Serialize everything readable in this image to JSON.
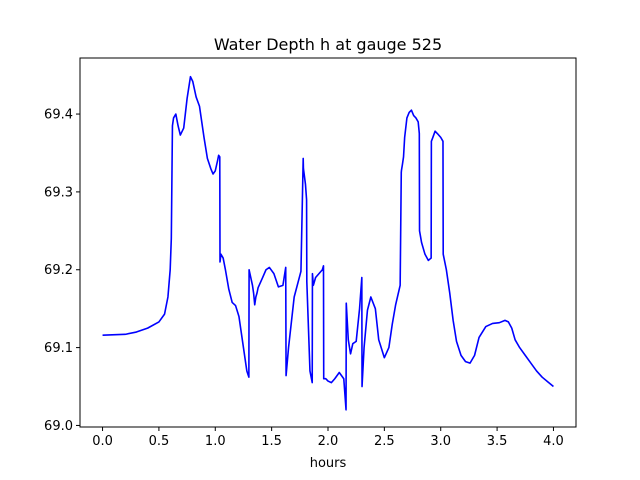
{
  "chart_data": {
    "type": "line",
    "title": "Water Depth h at gauge 525",
    "xlabel": "hours",
    "ylabel": "",
    "xlim": [
      -0.2,
      4.2
    ],
    "ylim": [
      68.998,
      69.472
    ],
    "xticks": [
      0.0,
      0.5,
      1.0,
      1.5,
      2.0,
      2.5,
      3.0,
      3.5,
      4.0
    ],
    "xtick_labels": [
      "0.0",
      "0.5",
      "1.0",
      "1.5",
      "2.0",
      "2.5",
      "3.0",
      "3.5",
      "4.0"
    ],
    "yticks": [
      69.0,
      69.1,
      69.2,
      69.3,
      69.4
    ],
    "ytick_labels": [
      "69.0",
      "69.1",
      "69.2",
      "69.3",
      "69.4"
    ],
    "grid": false,
    "legend": false,
    "series": [
      {
        "color": "#0000ff",
        "x": [
          0.0,
          0.2,
          0.3,
          0.4,
          0.5,
          0.55,
          0.58,
          0.6,
          0.61,
          0.62,
          0.63,
          0.65,
          0.67,
          0.69,
          0.72,
          0.75,
          0.78,
          0.8,
          0.83,
          0.86,
          0.9,
          0.93,
          0.96,
          0.98,
          1.0,
          1.02,
          1.03,
          1.04,
          1.042,
          1.05,
          1.07,
          1.09,
          1.12,
          1.15,
          1.18,
          1.21,
          1.25,
          1.28,
          1.298,
          1.3,
          1.33,
          1.34,
          1.35,
          1.36,
          1.37,
          1.38,
          1.42,
          1.45,
          1.48,
          1.52,
          1.56,
          1.6,
          1.625,
          1.628,
          1.65,
          1.7,
          1.76,
          1.78,
          1.782,
          1.8,
          1.81,
          1.812,
          1.84,
          1.86,
          1.862,
          1.87,
          1.89,
          1.92,
          1.95,
          1.96,
          1.962,
          1.98,
          2.0,
          2.03,
          2.06,
          2.1,
          2.14,
          2.16,
          2.162,
          2.18,
          2.2,
          2.22,
          2.25,
          2.28,
          2.3,
          2.302,
          2.32,
          2.35,
          2.38,
          2.42,
          2.45,
          2.5,
          2.54,
          2.57,
          2.6,
          2.64,
          2.65,
          2.652,
          2.66,
          2.67,
          2.68,
          2.7,
          2.72,
          2.74,
          2.76,
          2.78,
          2.8,
          2.81,
          2.812,
          2.83,
          2.86,
          2.89,
          2.915,
          2.917,
          2.93,
          2.95,
          2.97,
          3.0,
          3.02,
          3.022,
          3.05,
          3.08,
          3.11,
          3.14,
          3.18,
          3.22,
          3.26,
          3.3,
          3.34,
          3.4,
          3.46,
          3.52,
          3.57,
          3.6,
          3.63,
          3.66,
          3.7,
          3.75,
          3.8,
          3.85,
          3.9,
          3.95,
          4.0
        ],
        "y": [
          69.116,
          69.117,
          69.12,
          69.125,
          69.133,
          69.143,
          69.165,
          69.2,
          69.24,
          69.385,
          69.395,
          69.4,
          69.385,
          69.373,
          69.382,
          69.42,
          69.448,
          69.442,
          69.422,
          69.41,
          69.37,
          69.343,
          69.33,
          69.323,
          69.327,
          69.34,
          69.347,
          69.345,
          69.21,
          69.22,
          69.215,
          69.2,
          69.175,
          69.158,
          69.154,
          69.14,
          69.1,
          69.07,
          69.062,
          69.2,
          69.18,
          69.17,
          69.155,
          69.165,
          69.17,
          69.177,
          69.19,
          69.2,
          69.203,
          69.195,
          69.178,
          69.18,
          69.203,
          69.064,
          69.1,
          69.165,
          69.198,
          69.343,
          69.33,
          69.31,
          69.29,
          69.185,
          69.07,
          69.055,
          69.195,
          69.18,
          69.19,
          69.195,
          69.2,
          69.205,
          69.06,
          69.06,
          69.057,
          69.055,
          69.06,
          69.068,
          69.06,
          69.02,
          69.157,
          69.11,
          69.092,
          69.105,
          69.108,
          69.15,
          69.19,
          69.05,
          69.1,
          69.148,
          69.165,
          69.15,
          69.11,
          69.087,
          69.1,
          69.13,
          69.155,
          69.18,
          69.325,
          69.328,
          69.335,
          69.345,
          69.37,
          69.395,
          69.402,
          69.405,
          69.398,
          69.395,
          69.39,
          69.375,
          69.25,
          69.235,
          69.22,
          69.212,
          69.215,
          69.365,
          69.37,
          69.378,
          69.375,
          69.37,
          69.365,
          69.22,
          69.2,
          69.17,
          69.135,
          69.108,
          69.09,
          69.082,
          69.08,
          69.09,
          69.113,
          69.127,
          69.131,
          69.132,
          69.135,
          69.133,
          69.125,
          69.11,
          69.1,
          69.09,
          69.08,
          69.07,
          69.062,
          69.056,
          69.05
        ]
      }
    ]
  }
}
